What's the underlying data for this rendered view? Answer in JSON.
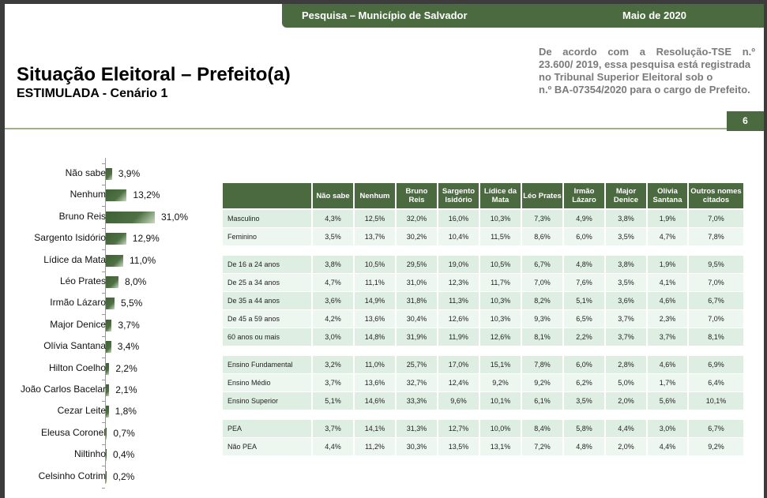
{
  "header": {
    "survey": "Pesquisa – Município de Salvador",
    "date": "Maio de 2020"
  },
  "title": "Situação Eleitoral – Prefeito(a)",
  "subtitle": "ESTIMULADA - Cenário 1",
  "note_lines": [
    "De acordo com a Resolução-TSE n.º",
    "23.600/ 2019, essa pesquisa está registrada",
    "no Tribunal Superior Eleitoral sob o",
    "n.º BA-07354/2020 para o cargo de Prefeito."
  ],
  "page_number": "6",
  "colors": {
    "brand": "#4b6a40",
    "row_a": "#dfeee3",
    "row_b": "#eef6f0"
  },
  "chart_data": {
    "type": "bar",
    "orientation": "horizontal",
    "title": "Situação Eleitoral – Prefeito(a)",
    "categories": [
      "Não sabe",
      "Nenhum",
      "Bruno Reis",
      "Sargento Isidório",
      "Lídice da Mata",
      "Léo Prates",
      "Irmão Lázaro",
      "Major Denice",
      "Olívia Santana",
      "Hilton Coelho",
      "João Carlos Bacelar",
      "Cezar Leite",
      "Eleusa Coronel",
      "Niltinho",
      "Celsinho Cotrim"
    ],
    "values": [
      3.9,
      13.2,
      31.0,
      12.9,
      11.0,
      8.0,
      5.5,
      3.7,
      3.4,
      2.2,
      2.1,
      1.8,
      0.7,
      0.4,
      0.2
    ],
    "labels": [
      "3,9%",
      "13,2%",
      "31,0%",
      "12,9%",
      "11,0%",
      "8,0%",
      "5,5%",
      "3,7%",
      "3,4%",
      "2,2%",
      "2,1%",
      "1,8%",
      "0,7%",
      "0,4%",
      "0,2%"
    ],
    "xlabel": "",
    "ylabel": "",
    "unit": "%"
  },
  "table": {
    "columns": [
      "Não sabe",
      "Nenhum",
      "Bruno Reis",
      "Sargento Isidório",
      "Lídice da Mata",
      "Léo Prates",
      "Irmão Lázaro",
      "Major Denice",
      "Olívia Santana",
      "Outros nomes citados"
    ],
    "groups": [
      [
        {
          "label": "Masculino",
          "values": [
            "4,3%",
            "12,5%",
            "32,0%",
            "16,0%",
            "10,3%",
            "7,3%",
            "4,9%",
            "3,8%",
            "1,9%",
            "7,0%"
          ]
        },
        {
          "label": "Feminino",
          "values": [
            "3,5%",
            "13,7%",
            "30,2%",
            "10,4%",
            "11,5%",
            "8,6%",
            "6,0%",
            "3,5%",
            "4,7%",
            "7,8%"
          ]
        }
      ],
      [
        {
          "label": "De 16 a 24 anos",
          "values": [
            "3,8%",
            "10,5%",
            "29,5%",
            "19,0%",
            "10,5%",
            "6,7%",
            "4,8%",
            "3,8%",
            "1,9%",
            "9,5%"
          ]
        },
        {
          "label": "De 25 a 34 anos",
          "values": [
            "4,7%",
            "11,1%",
            "31,0%",
            "12,3%",
            "11,7%",
            "7,0%",
            "7,6%",
            "3,5%",
            "4,1%",
            "7,0%"
          ]
        },
        {
          "label": "De 35 a 44 anos",
          "values": [
            "3,6%",
            "14,9%",
            "31,8%",
            "11,3%",
            "10,3%",
            "8,2%",
            "5,1%",
            "3,6%",
            "4,6%",
            "6,7%"
          ]
        },
        {
          "label": "De 45 a 59 anos",
          "values": [
            "4,2%",
            "13,6%",
            "30,4%",
            "12,6%",
            "10,3%",
            "9,3%",
            "6,5%",
            "3,7%",
            "2,3%",
            "7,0%"
          ]
        },
        {
          "label": "60 anos ou mais",
          "values": [
            "3,0%",
            "14,8%",
            "31,9%",
            "11,9%",
            "12,6%",
            "8,1%",
            "2,2%",
            "3,7%",
            "3,7%",
            "8,1%"
          ]
        }
      ],
      [
        {
          "label": "Ensino Fundamental",
          "values": [
            "3,2%",
            "11,0%",
            "25,7%",
            "17,0%",
            "15,1%",
            "7,8%",
            "6,0%",
            "2,8%",
            "4,6%",
            "6,9%"
          ]
        },
        {
          "label": "Ensino Médio",
          "values": [
            "3,7%",
            "13,6%",
            "32,7%",
            "12,4%",
            "9,2%",
            "9,2%",
            "6,2%",
            "5,0%",
            "1,7%",
            "6,4%"
          ]
        },
        {
          "label": "Ensino Superior",
          "values": [
            "5,1%",
            "14,6%",
            "33,3%",
            "9,6%",
            "10,1%",
            "6,1%",
            "3,5%",
            "2,0%",
            "5,6%",
            "10,1%"
          ]
        }
      ],
      [
        {
          "label": " PEA",
          "values": [
            "3,7%",
            "14,1%",
            "31,3%",
            "12,7%",
            "10,0%",
            "8,4%",
            "5,8%",
            "4,4%",
            "3,0%",
            "6,7%"
          ]
        },
        {
          "label": " Não PEA",
          "values": [
            "4,4%",
            "11,2%",
            "30,3%",
            "13,5%",
            "13,1%",
            "7,2%",
            "4,8%",
            "2,0%",
            "4,4%",
            "9,2%"
          ]
        }
      ]
    ]
  }
}
